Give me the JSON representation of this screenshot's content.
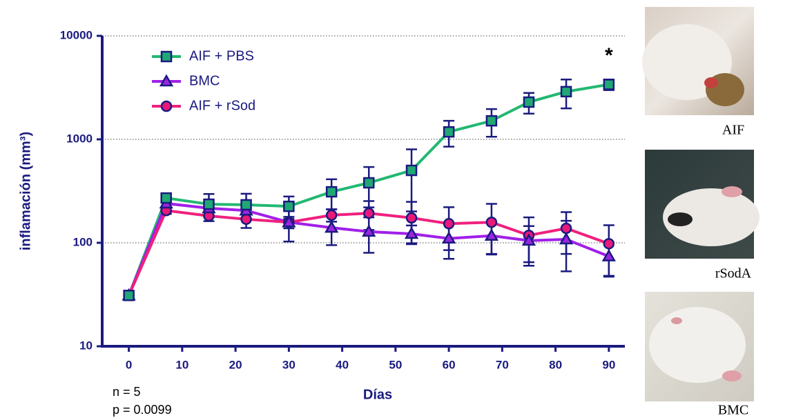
{
  "chart_data": {
    "type": "line",
    "log_y": true,
    "grid": true,
    "y_label": "inflamación (mm³)",
    "x_label": "Días",
    "x": [
      0,
      7,
      15,
      22,
      30,
      38,
      45,
      53,
      60,
      68,
      75,
      82,
      90
    ],
    "xlim": [
      -5,
      93
    ],
    "xticks": [
      0,
      10,
      20,
      30,
      40,
      50,
      60,
      70,
      80,
      90
    ],
    "ylim": [
      10,
      10000
    ],
    "yticks": [
      10,
      100,
      1000,
      10000
    ],
    "legend": "upper left",
    "series": [
      {
        "name": "AIF + PBS",
        "color": "#22b872",
        "marker_color": "#1fa874",
        "marker": "square",
        "values": [
          31,
          271,
          236,
          233,
          225,
          311,
          380,
          501,
          1180,
          1510,
          2290,
          2890,
          3390
        ],
        "errors": [
          2,
          20,
          60,
          65,
          55,
          100,
          160,
          300,
          330,
          450,
          520,
          900,
          400
        ]
      },
      {
        "name": "BMC",
        "color": "#a020e8",
        "marker_color": "#9a25e0",
        "marker": "triangle",
        "values": [
          31,
          240,
          216,
          205,
          158,
          140,
          128,
          122,
          110,
          117,
          105,
          108,
          74
        ],
        "errors": [
          2,
          20,
          30,
          35,
          55,
          45,
          48,
          25,
          40,
          40,
          40,
          55,
          27
        ]
      },
      {
        "name": "AIF + rSod",
        "color": "#f0207e",
        "marker_color": "#e8197a",
        "marker": "circle",
        "values": [
          31,
          205,
          182,
          169,
          158,
          185,
          193,
          174,
          153,
          158,
          118,
          138,
          98
        ],
        "errors": [
          2,
          15,
          20,
          30,
          20,
          25,
          60,
          75,
          68,
          80,
          58,
          60,
          50
        ]
      }
    ],
    "annotation": "*",
    "notes": [
      "n = 5",
      "p = 0.0099"
    ]
  },
  "photos": [
    {
      "caption": "AIF"
    },
    {
      "caption": "rSodA"
    },
    {
      "caption": "BMC"
    }
  ]
}
